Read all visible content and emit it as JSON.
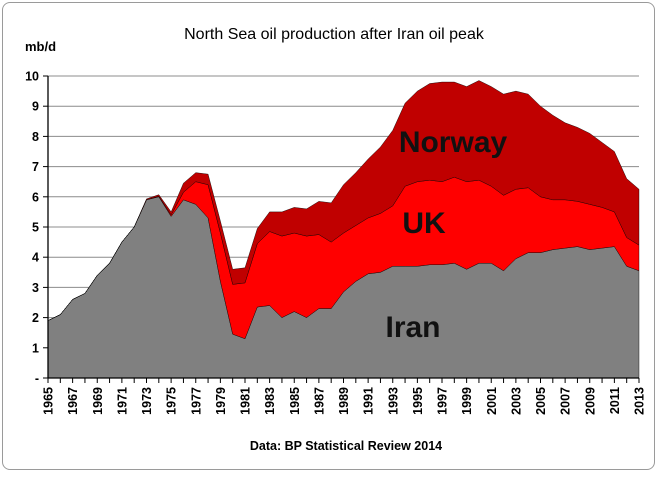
{
  "chart_data": {
    "type": "area",
    "stacked": true,
    "title": "North Sea oil production after Iran oil peak",
    "ylabel": "mb/d",
    "xlabel": "",
    "ylim": [
      0,
      10
    ],
    "yticks": [
      "-",
      "1",
      "2",
      "3",
      "4",
      "5",
      "6",
      "7",
      "8",
      "9",
      "10"
    ],
    "xtick_labels": [
      "1965",
      "1967",
      "1969",
      "1971",
      "1973",
      "1975",
      "1977",
      "1979",
      "1981",
      "1983",
      "1985",
      "1987",
      "1989",
      "1991",
      "1993",
      "1995",
      "1997",
      "1999",
      "2001",
      "2003",
      "2005",
      "2007",
      "2009",
      "2011",
      "2013"
    ],
    "x": [
      1965,
      1966,
      1967,
      1968,
      1969,
      1970,
      1971,
      1972,
      1973,
      1974,
      1975,
      1976,
      1977,
      1978,
      1979,
      1980,
      1981,
      1982,
      1983,
      1984,
      1985,
      1986,
      1987,
      1988,
      1989,
      1990,
      1991,
      1992,
      1993,
      1994,
      1995,
      1996,
      1997,
      1998,
      1999,
      2000,
      2001,
      2002,
      2003,
      2004,
      2005,
      2006,
      2007,
      2008,
      2009,
      2010,
      2011,
      2012,
      2013
    ],
    "series": [
      {
        "name": "Iran",
        "color": "#808080",
        "values": [
          1.9,
          2.1,
          2.6,
          2.8,
          3.4,
          3.8,
          4.5,
          5.0,
          5.9,
          6.0,
          5.35,
          5.9,
          5.75,
          5.3,
          3.2,
          1.45,
          1.3,
          2.35,
          2.4,
          2.0,
          2.2,
          2.0,
          2.3,
          2.3,
          2.85,
          3.2,
          3.45,
          3.5,
          3.7,
          3.7,
          3.7,
          3.75,
          3.75,
          3.8,
          3.6,
          3.8,
          3.8,
          3.55,
          3.95,
          4.15,
          4.15,
          4.25,
          4.3,
          4.35,
          4.25,
          4.3,
          4.35,
          3.7,
          3.55
        ]
      },
      {
        "name": "UK",
        "color": "#ff0000",
        "values": [
          0,
          0,
          0,
          0,
          0,
          0,
          0,
          0,
          0,
          0.02,
          0.05,
          0.25,
          0.75,
          1.1,
          1.6,
          1.65,
          1.85,
          2.1,
          2.45,
          2.7,
          2.6,
          2.7,
          2.45,
          2.2,
          1.95,
          1.85,
          1.85,
          1.95,
          2.0,
          2.65,
          2.8,
          2.8,
          2.75,
          2.85,
          2.9,
          2.75,
          2.55,
          2.5,
          2.3,
          2.15,
          1.85,
          1.65,
          1.6,
          1.5,
          1.5,
          1.35,
          1.15,
          0.95,
          0.85
        ]
      },
      {
        "name": "Norway",
        "color": "#c00000",
        "values": [
          0,
          0,
          0,
          0,
          0,
          0,
          0,
          0,
          0.03,
          0.05,
          0.1,
          0.3,
          0.3,
          0.35,
          0.4,
          0.5,
          0.5,
          0.5,
          0.65,
          0.8,
          0.85,
          0.9,
          1.1,
          1.3,
          1.6,
          1.75,
          1.95,
          2.2,
          2.5,
          2.75,
          3.0,
          3.2,
          3.3,
          3.15,
          3.15,
          3.3,
          3.3,
          3.35,
          3.25,
          3.1,
          3.0,
          2.8,
          2.55,
          2.45,
          2.35,
          2.15,
          2.0,
          1.95,
          1.85
        ]
      }
    ],
    "area_labels": [
      "Norway",
      "UK",
      "Iran"
    ],
    "grid": "horizontal",
    "legend": "none",
    "source_note": "Data: BP Statistical Review 2014"
  }
}
